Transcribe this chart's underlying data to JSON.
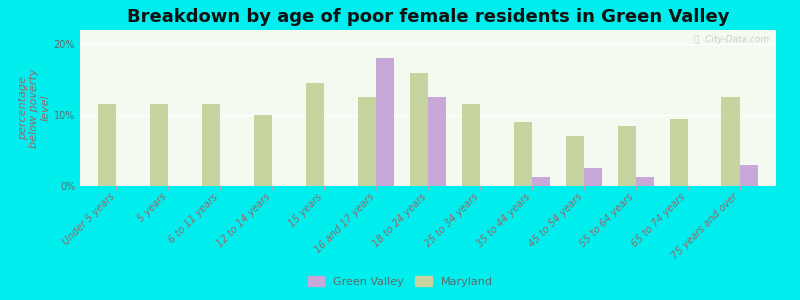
{
  "title": "Breakdown by age of poor female residents in Green Valley",
  "ylabel": "percentage\nbelow poverty\nlevel",
  "categories": [
    "Under 5 years",
    "5 years",
    "6 to 11 years",
    "12 to 14 years",
    "15 years",
    "16 and 17 years",
    "18 to 24 years",
    "25 to 34 years",
    "35 to 44 years",
    "45 to 54 years",
    "55 to 64 years",
    "65 to 74 years",
    "75 years and over"
  ],
  "green_valley": [
    0,
    0,
    0,
    0,
    0,
    18.0,
    12.5,
    0,
    1.2,
    2.5,
    1.2,
    0,
    3.0
  ],
  "maryland": [
    11.5,
    11.5,
    11.5,
    10.0,
    14.5,
    12.5,
    16.0,
    11.5,
    9.0,
    7.0,
    8.5,
    9.5,
    12.5
  ],
  "bar_color_gv": "#c8a8d8",
  "bar_color_md": "#c8d4a0",
  "background_color": "#00eeee",
  "plot_bg": "#f5faf0",
  "ylim": [
    0,
    22
  ],
  "yticks": [
    0,
    10,
    20
  ],
  "ytick_labels": [
    "0%",
    "10%",
    "20%"
  ],
  "bar_width": 0.35,
  "title_fontsize": 13,
  "axis_label_fontsize": 8,
  "tick_fontsize": 7,
  "legend_labels": [
    "Green Valley",
    "Maryland"
  ],
  "watermark": "ⓘ  City-Data.com"
}
